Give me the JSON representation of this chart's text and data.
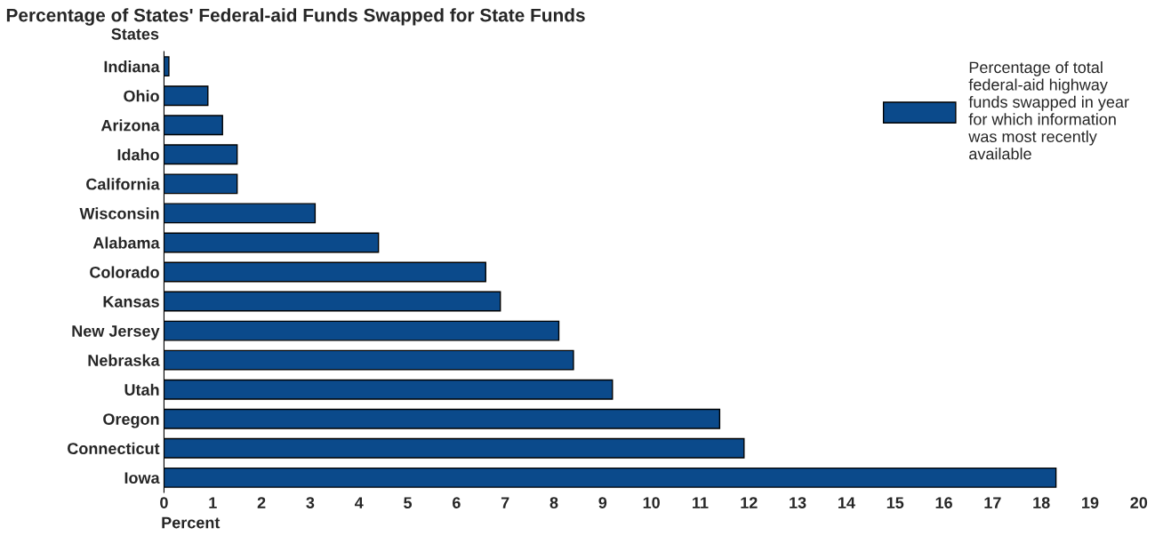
{
  "chart_data": {
    "type": "bar",
    "orientation": "horizontal",
    "title": "Percentage of States' Federal-aid Funds Swapped for State Funds",
    "xlabel": "Percent",
    "ylabel": "States",
    "categories": [
      "Indiana",
      "Ohio",
      "Arizona",
      "Idaho",
      "California",
      "Wisconsin",
      "Alabama",
      "Colorado",
      "Kansas",
      "New Jersey",
      "Nebraska",
      "Utah",
      "Oregon",
      "Connecticut",
      "Iowa"
    ],
    "series": [
      {
        "name": "Percentage of total\nfederal-aid highway\nfunds swapped in year\nfor which information\nwas most recently\navailable",
        "color": "#0b4a8b",
        "values": [
          0.1,
          0.9,
          1.2,
          1.5,
          1.5,
          3.1,
          4.4,
          6.6,
          6.9,
          8.1,
          8.4,
          9.2,
          11.4,
          11.9,
          18.3
        ]
      }
    ],
    "xlim": [
      0,
      20
    ],
    "xticks": [
      0,
      1,
      2,
      3,
      4,
      5,
      6,
      7,
      8,
      9,
      10,
      11,
      12,
      13,
      14,
      15,
      16,
      17,
      18,
      19,
      20
    ],
    "grid": false,
    "legend": "top right"
  }
}
